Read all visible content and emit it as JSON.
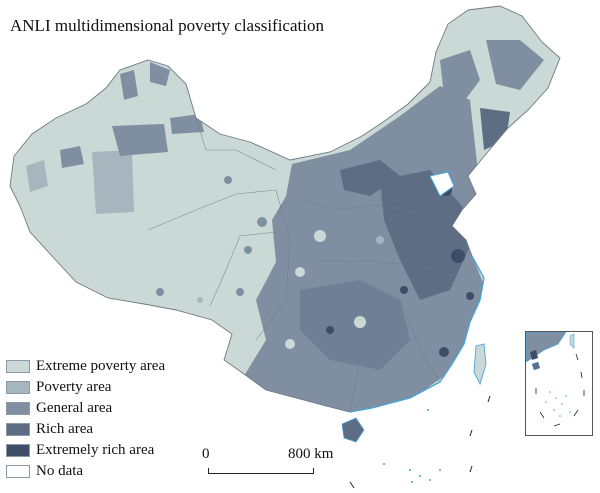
{
  "map": {
    "title": "ANLI multidimensional poverty classification",
    "scale": {
      "start": "0",
      "end": "800 km"
    }
  },
  "legend": {
    "items": [
      {
        "label": "Extreme poverty area",
        "color": "#cbd9d6"
      },
      {
        "label": "Poverty area",
        "color": "#a7b5bf"
      },
      {
        "label": "General area",
        "color": "#7f8fa1"
      },
      {
        "label": "Rich area",
        "color": "#5d6e84"
      },
      {
        "label": "Extremely rich area",
        "color": "#3e4c66"
      },
      {
        "label": "No data",
        "color": "#ffffff"
      }
    ]
  },
  "colors": {
    "coast": "#47a6de",
    "border": "#6c7a85"
  }
}
